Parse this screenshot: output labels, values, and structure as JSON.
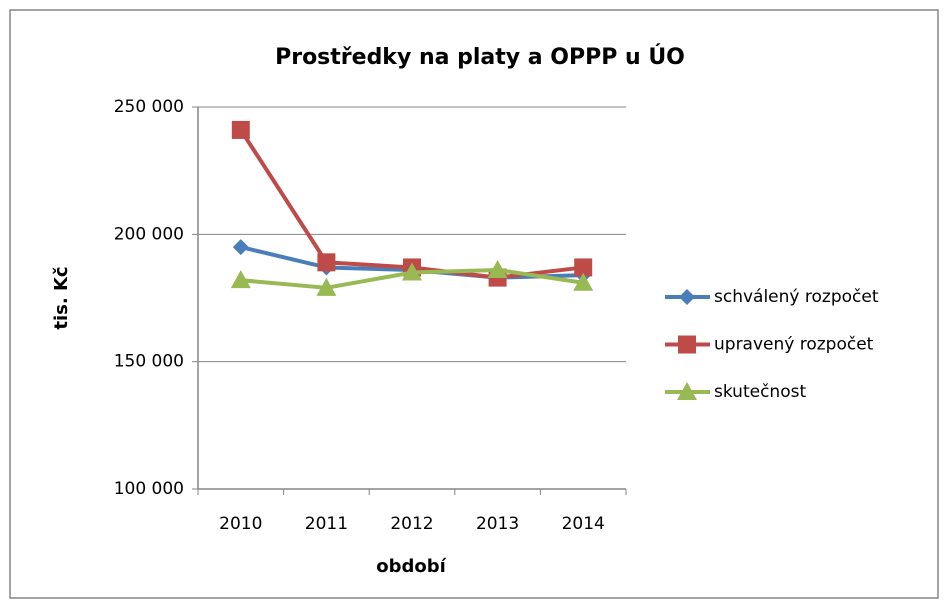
{
  "chart_data": {
    "type": "line",
    "title": "Prostředky na platy a OPPP u ÚO",
    "x_label": "období",
    "y_label": "tis. Kč",
    "categories": [
      "2010",
      "2011",
      "2012",
      "2013",
      "2014"
    ],
    "series": [
      {
        "name": "schválený rozpočet",
        "color": "#4a7ebb",
        "marker": "diamond",
        "values": [
          195000,
          187000,
          186000,
          183000,
          184000
        ]
      },
      {
        "name": "upravený rozpočet",
        "color": "#be4b48",
        "marker": "square",
        "values": [
          241000,
          189000,
          187000,
          183000,
          187000
        ]
      },
      {
        "name": "skutečnost",
        "color": "#98b954",
        "marker": "triangle",
        "values": [
          182000,
          179000,
          185000,
          186000,
          181000
        ]
      }
    ],
    "ylim": [
      100000,
      250000
    ],
    "yticks": [
      {
        "value": 100000,
        "label": "100 000"
      },
      {
        "value": 150000,
        "label": "150 000"
      },
      {
        "value": 200000,
        "label": "200 000"
      },
      {
        "value": 250000,
        "label": "250 000"
      }
    ],
    "grid": true,
    "legend": "right"
  }
}
